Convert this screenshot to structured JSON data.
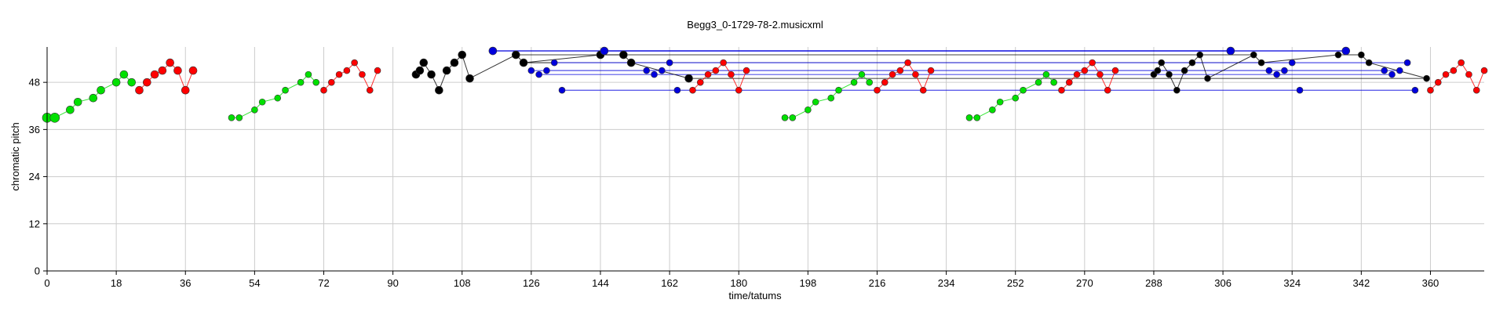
{
  "chart_data": {
    "type": "scatter",
    "title": "Begg3_0-1729-78-2.musicxml",
    "xlabel": "time/tatums",
    "ylabel": "chromatic pitch",
    "xlim": [
      0,
      374
    ],
    "ylim": [
      0,
      57
    ],
    "xticks": [
      "0",
      "18",
      "36",
      "54",
      "72",
      "90",
      "108",
      "126",
      "144",
      "162",
      "180",
      "198",
      "216",
      "234",
      "252",
      "270",
      "288",
      "306",
      "324",
      "342",
      "360"
    ],
    "yticks": [
      "0",
      "12",
      "24",
      "36",
      "48"
    ],
    "grid": true,
    "series": [
      {
        "color": "#00e000",
        "points": [
          {
            "x": 0,
            "y": 39,
            "s": 6
          },
          {
            "x": 2,
            "y": 39,
            "s": 6
          },
          {
            "x": 6,
            "y": 41,
            "s": 5
          },
          {
            "x": 8,
            "y": 43,
            "s": 5
          },
          {
            "x": 12,
            "y": 44,
            "s": 5
          },
          {
            "x": 14,
            "y": 46,
            "s": 5
          },
          {
            "x": 18,
            "y": 48,
            "s": 5
          },
          {
            "x": 20,
            "y": 50,
            "s": 5
          },
          {
            "x": 22,
            "y": 48,
            "s": 5
          },
          {
            "x": 48,
            "y": 39,
            "s": 4
          },
          {
            "x": 50,
            "y": 39,
            "s": 4
          },
          {
            "x": 54,
            "y": 41,
            "s": 4
          },
          {
            "x": 56,
            "y": 43,
            "s": 4
          },
          {
            "x": 60,
            "y": 44,
            "s": 4
          },
          {
            "x": 62,
            "y": 46,
            "s": 4
          },
          {
            "x": 66,
            "y": 48,
            "s": 4
          },
          {
            "x": 68,
            "y": 50,
            "s": 4
          },
          {
            "x": 70,
            "y": 48,
            "s": 4
          },
          {
            "x": 192,
            "y": 39,
            "s": 4
          },
          {
            "x": 194,
            "y": 39,
            "s": 4
          },
          {
            "x": 198,
            "y": 41,
            "s": 4
          },
          {
            "x": 200,
            "y": 43,
            "s": 4
          },
          {
            "x": 204,
            "y": 44,
            "s": 4
          },
          {
            "x": 206,
            "y": 46,
            "s": 4
          },
          {
            "x": 210,
            "y": 48,
            "s": 4
          },
          {
            "x": 212,
            "y": 50,
            "s": 4
          },
          {
            "x": 214,
            "y": 48,
            "s": 4
          },
          {
            "x": 240,
            "y": 39,
            "s": 4
          },
          {
            "x": 242,
            "y": 39,
            "s": 4
          },
          {
            "x": 246,
            "y": 41,
            "s": 4
          },
          {
            "x": 248,
            "y": 43,
            "s": 4
          },
          {
            "x": 252,
            "y": 44,
            "s": 4
          },
          {
            "x": 254,
            "y": 46,
            "s": 4
          },
          {
            "x": 258,
            "y": 48,
            "s": 4
          },
          {
            "x": 260,
            "y": 50,
            "s": 4
          },
          {
            "x": 262,
            "y": 48,
            "s": 4
          }
        ],
        "segments": [
          [
            0,
            8
          ],
          [
            9,
            17
          ],
          [
            18,
            26
          ],
          [
            27,
            35
          ]
        ]
      },
      {
        "color": "#ff0000",
        "points": [
          {
            "x": 24,
            "y": 46,
            "s": 5
          },
          {
            "x": 26,
            "y": 48,
            "s": 5
          },
          {
            "x": 28,
            "y": 50,
            "s": 5
          },
          {
            "x": 30,
            "y": 51,
            "s": 5
          },
          {
            "x": 32,
            "y": 53,
            "s": 5
          },
          {
            "x": 34,
            "y": 51,
            "s": 5
          },
          {
            "x": 36,
            "y": 46,
            "s": 5
          },
          {
            "x": 38,
            "y": 51,
            "s": 5
          },
          {
            "x": 72,
            "y": 46,
            "s": 4
          },
          {
            "x": 74,
            "y": 48,
            "s": 4
          },
          {
            "x": 76,
            "y": 50,
            "s": 4
          },
          {
            "x": 78,
            "y": 51,
            "s": 4
          },
          {
            "x": 80,
            "y": 53,
            "s": 4
          },
          {
            "x": 82,
            "y": 50,
            "s": 4
          },
          {
            "x": 84,
            "y": 46,
            "s": 4
          },
          {
            "x": 86,
            "y": 51,
            "s": 4
          },
          {
            "x": 168,
            "y": 46,
            "s": 4
          },
          {
            "x": 170,
            "y": 48,
            "s": 4
          },
          {
            "x": 172,
            "y": 50,
            "s": 4
          },
          {
            "x": 174,
            "y": 51,
            "s": 4
          },
          {
            "x": 176,
            "y": 53,
            "s": 4
          },
          {
            "x": 178,
            "y": 50,
            "s": 4
          },
          {
            "x": 180,
            "y": 46,
            "s": 4
          },
          {
            "x": 182,
            "y": 51,
            "s": 4
          },
          {
            "x": 216,
            "y": 46,
            "s": 4
          },
          {
            "x": 218,
            "y": 48,
            "s": 4
          },
          {
            "x": 220,
            "y": 50,
            "s": 4
          },
          {
            "x": 222,
            "y": 51,
            "s": 4
          },
          {
            "x": 224,
            "y": 53,
            "s": 4
          },
          {
            "x": 226,
            "y": 50,
            "s": 4
          },
          {
            "x": 228,
            "y": 46,
            "s": 4
          },
          {
            "x": 230,
            "y": 51,
            "s": 4
          },
          {
            "x": 264,
            "y": 46,
            "s": 4
          },
          {
            "x": 266,
            "y": 48,
            "s": 4
          },
          {
            "x": 268,
            "y": 50,
            "s": 4
          },
          {
            "x": 270,
            "y": 51,
            "s": 4
          },
          {
            "x": 272,
            "y": 53,
            "s": 4
          },
          {
            "x": 274,
            "y": 50,
            "s": 4
          },
          {
            "x": 276,
            "y": 46,
            "s": 4
          },
          {
            "x": 278,
            "y": 51,
            "s": 4
          },
          {
            "x": 360,
            "y": 46,
            "s": 4
          },
          {
            "x": 362,
            "y": 48,
            "s": 4
          },
          {
            "x": 364,
            "y": 50,
            "s": 4
          },
          {
            "x": 366,
            "y": 51,
            "s": 4
          },
          {
            "x": 368,
            "y": 53,
            "s": 4
          },
          {
            "x": 370,
            "y": 50,
            "s": 4
          },
          {
            "x": 372,
            "y": 46,
            "s": 4
          },
          {
            "x": 374,
            "y": 51,
            "s": 4
          }
        ],
        "segments": [
          [
            0,
            7
          ],
          [
            8,
            15
          ],
          [
            16,
            23
          ],
          [
            24,
            31
          ],
          [
            32,
            39
          ],
          [
            40,
            47
          ]
        ]
      },
      {
        "color": "#000000",
        "points": [
          {
            "x": 96,
            "y": 50,
            "s": 5
          },
          {
            "x": 97,
            "y": 51,
            "s": 5
          },
          {
            "x": 98,
            "y": 53,
            "s": 5
          },
          {
            "x": 100,
            "y": 50,
            "s": 5
          },
          {
            "x": 102,
            "y": 46,
            "s": 5
          },
          {
            "x": 104,
            "y": 51,
            "s": 5
          },
          {
            "x": 106,
            "y": 53,
            "s": 5
          },
          {
            "x": 108,
            "y": 55,
            "s": 5
          },
          {
            "x": 110,
            "y": 49,
            "s": 5
          },
          {
            "x": 122,
            "y": 55,
            "s": 5
          },
          {
            "x": 124,
            "y": 53,
            "s": 5
          },
          {
            "x": 144,
            "y": 55,
            "s": 5
          },
          {
            "x": 150,
            "y": 55,
            "s": 5
          },
          {
            "x": 152,
            "y": 53,
            "s": 5
          },
          {
            "x": 167,
            "y": 49,
            "s": 5
          },
          {
            "x": 288,
            "y": 50,
            "s": 4
          },
          {
            "x": 289,
            "y": 51,
            "s": 4
          },
          {
            "x": 290,
            "y": 53,
            "s": 4
          },
          {
            "x": 292,
            "y": 50,
            "s": 4
          },
          {
            "x": 294,
            "y": 46,
            "s": 4
          },
          {
            "x": 296,
            "y": 51,
            "s": 4
          },
          {
            "x": 298,
            "y": 53,
            "s": 4
          },
          {
            "x": 300,
            "y": 55,
            "s": 4
          },
          {
            "x": 302,
            "y": 49,
            "s": 4
          },
          {
            "x": 314,
            "y": 55,
            "s": 4
          },
          {
            "x": 316,
            "y": 53,
            "s": 4
          },
          {
            "x": 336,
            "y": 55,
            "s": 4
          },
          {
            "x": 342,
            "y": 55,
            "s": 4
          },
          {
            "x": 344,
            "y": 53,
            "s": 4
          },
          {
            "x": 359,
            "y": 49,
            "s": 4
          }
        ],
        "segments": [
          [
            0,
            14
          ],
          [
            15,
            29
          ]
        ]
      },
      {
        "color": "#0000dd",
        "points": [
          {
            "x": 116,
            "y": 56,
            "s": 5
          },
          {
            "x": 145,
            "y": 56,
            "s": 5
          },
          {
            "x": 126,
            "y": 51,
            "s": 4
          },
          {
            "x": 128,
            "y": 50,
            "s": 4
          },
          {
            "x": 130,
            "y": 51,
            "s": 4
          },
          {
            "x": 132,
            "y": 53,
            "s": 4
          },
          {
            "x": 134,
            "y": 46,
            "s": 4
          },
          {
            "x": 156,
            "y": 51,
            "s": 4
          },
          {
            "x": 158,
            "y": 50,
            "s": 4
          },
          {
            "x": 160,
            "y": 51,
            "s": 4
          },
          {
            "x": 162,
            "y": 53,
            "s": 4
          },
          {
            "x": 164,
            "y": 46,
            "s": 4
          },
          {
            "x": 308,
            "y": 56,
            "s": 5
          },
          {
            "x": 338,
            "y": 56,
            "s": 5
          },
          {
            "x": 318,
            "y": 51,
            "s": 4
          },
          {
            "x": 320,
            "y": 50,
            "s": 4
          },
          {
            "x": 322,
            "y": 51,
            "s": 4
          },
          {
            "x": 324,
            "y": 53,
            "s": 4
          },
          {
            "x": 326,
            "y": 46,
            "s": 4
          },
          {
            "x": 348,
            "y": 51,
            "s": 4
          },
          {
            "x": 350,
            "y": 50,
            "s": 4
          },
          {
            "x": 352,
            "y": 51,
            "s": 4
          },
          {
            "x": 354,
            "y": 53,
            "s": 4
          },
          {
            "x": 356,
            "y": 46,
            "s": 4
          }
        ],
        "segments": []
      }
    ],
    "spans": [
      {
        "x1": 116,
        "x2": 338,
        "y": 56,
        "color": "#0000dd",
        "w": 1.2
      },
      {
        "x1": 145,
        "x2": 308,
        "y": 56,
        "color": "#0000dd",
        "w": 1.2
      },
      {
        "x1": 122,
        "x2": 314,
        "y": 55,
        "color": "#000000",
        "w": 0.8
      },
      {
        "x1": 124,
        "x2": 316,
        "y": 53,
        "color": "#000000",
        "w": 0.8
      },
      {
        "x1": 132,
        "x2": 354,
        "y": 53,
        "color": "#0000dd",
        "w": 0.8
      },
      {
        "x1": 126,
        "x2": 348,
        "y": 51,
        "color": "#0000dd",
        "w": 0.8
      },
      {
        "x1": 130,
        "x2": 352,
        "y": 51,
        "color": "#0000dd",
        "w": 0.8
      },
      {
        "x1": 128,
        "x2": 350,
        "y": 50,
        "color": "#0000dd",
        "w": 0.8
      },
      {
        "x1": 167,
        "x2": 359,
        "y": 49,
        "color": "#000000",
        "w": 0.8
      },
      {
        "x1": 134,
        "x2": 356,
        "y": 46,
        "color": "#0000dd",
        "w": 0.8
      }
    ]
  }
}
